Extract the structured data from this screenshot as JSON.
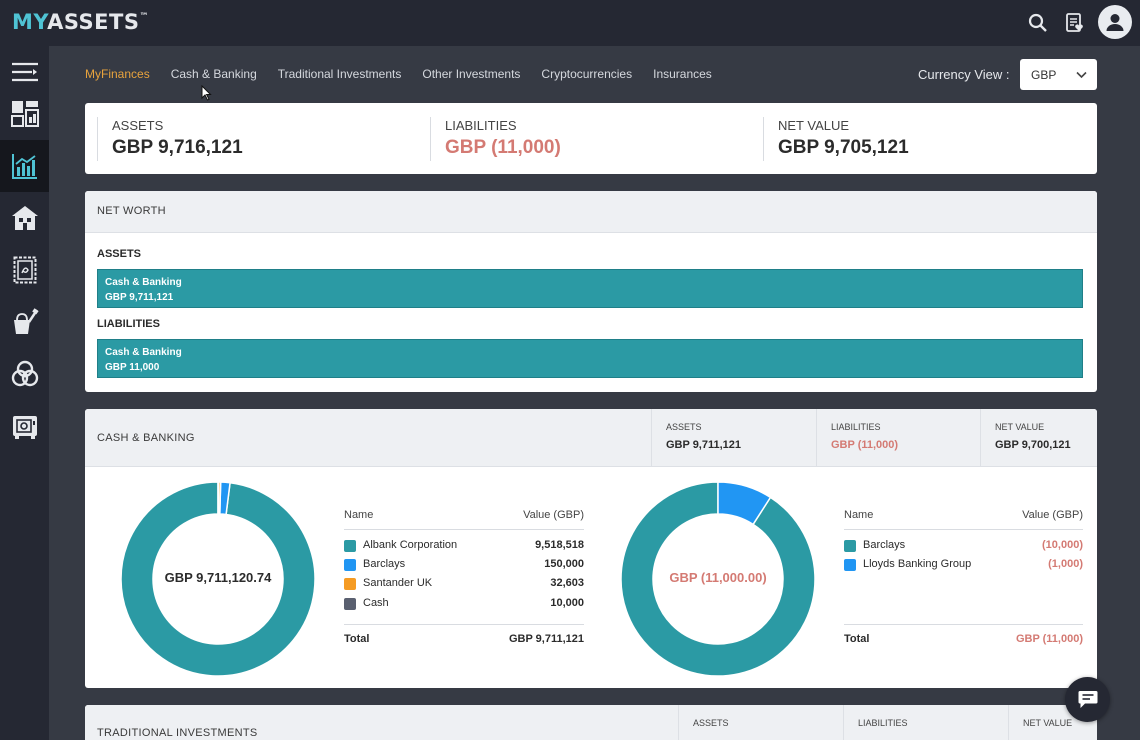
{
  "logo": {
    "part1": "MY",
    "part2": "ASSETS",
    "tm": "™"
  },
  "icons": {
    "search": "search-icon",
    "notes": "clipboard-heart-icon",
    "avatar": "user-icon"
  },
  "sidebar": {
    "items": [
      {
        "name": "sidebar-menu-toggle",
        "icon": "menu-icon"
      },
      {
        "name": "sidebar-item-dashboard",
        "icon": "dashboard-icon"
      },
      {
        "name": "sidebar-item-myfinances",
        "icon": "chart-icon",
        "active": true
      },
      {
        "name": "sidebar-item-property",
        "icon": "house-icon"
      },
      {
        "name": "sidebar-item-documents",
        "icon": "document-icon"
      },
      {
        "name": "sidebar-item-possessions",
        "icon": "paint-bucket-icon"
      },
      {
        "name": "sidebar-item-network",
        "icon": "circles-icon"
      },
      {
        "name": "sidebar-item-safe",
        "icon": "safe-icon"
      }
    ]
  },
  "nav": {
    "tabs": [
      {
        "label": "MyFinances",
        "active": true
      },
      {
        "label": "Cash & Banking"
      },
      {
        "label": "Traditional Investments"
      },
      {
        "label": "Other Investments"
      },
      {
        "label": "Cryptocurrencies"
      },
      {
        "label": "Insurances"
      }
    ],
    "currency_label": "Currency View :",
    "currency_value": "GBP"
  },
  "summary": {
    "assets_label": "ASSETS",
    "assets_value": "GBP 9,716,121",
    "liabilities_label": "LIABILITIES",
    "liabilities_value": "GBP (11,000)",
    "net_label": "NET VALUE",
    "net_value": "GBP 9,705,121"
  },
  "networth": {
    "title": "NET WORTH",
    "assets_label": "ASSETS",
    "assets_bar": {
      "name": "Cash & Banking",
      "value": "GBP 9,711,121"
    },
    "liabilities_label": "LIABILITIES",
    "liabilities_bar": {
      "name": "Cash & Banking",
      "value": "GBP 11,000"
    }
  },
  "cash_banking": {
    "title": "CASH & BANKING",
    "assets_label": "ASSETS",
    "assets_value": "GBP 9,711,121",
    "liabilities_label": "LIABILITIES",
    "liabilities_value": "GBP (11,000)",
    "net_label": "NET VALUE",
    "net_value": "GBP 9,700,121",
    "legend_name_header": "Name",
    "legend_value_header": "Value (GBP)",
    "total_label": "Total"
  },
  "chart_data": [
    {
      "type": "pie",
      "subtype": "donut",
      "center_label": "GBP 9,711,120.74",
      "categories": [
        "Albank Corporation",
        "Barclays",
        "Santander UK",
        "Cash"
      ],
      "values": [
        9518518,
        150000,
        32603,
        10000
      ],
      "value_labels": [
        "9,518,518",
        "150,000",
        "32,603",
        "10,000"
      ],
      "colors": [
        "#2b9aa4",
        "#2196f3",
        "#f59b23",
        "#5a6070"
      ],
      "total_label": "GBP 9,711,121"
    },
    {
      "type": "pie",
      "subtype": "donut",
      "center_label": "GBP (11,000.00)",
      "categories": [
        "Barclays",
        "Lloyds Banking Group"
      ],
      "values": [
        10000,
        1000
      ],
      "value_labels": [
        "(10,000)",
        "(1,000)"
      ],
      "colors": [
        "#2b9aa4",
        "#2196f3"
      ],
      "total_label": "GBP (11,000)"
    }
  ],
  "traditional": {
    "title": "TRADITIONAL INVESTMENTS",
    "assets_label": "ASSETS",
    "liabilities_label": "LIABILITIES",
    "net_label": "NET VALUE"
  }
}
